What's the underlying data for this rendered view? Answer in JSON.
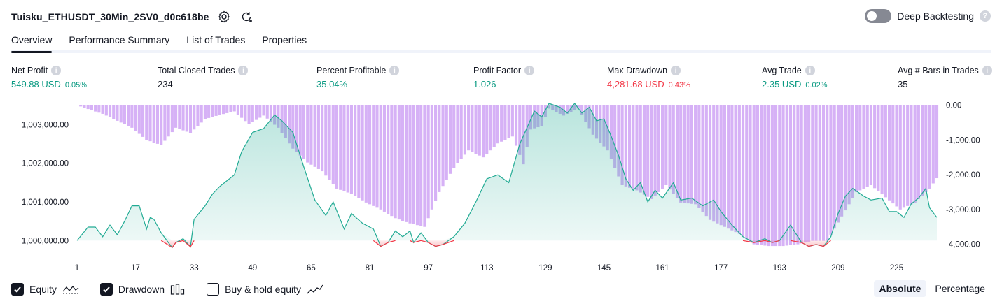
{
  "header": {
    "strategy_name": "Tuisku_ETHUSDT_30Min_2SV0_d0c618be",
    "settings_icon": "gear-icon",
    "refresh_icon": "refresh-icon"
  },
  "deep_backtesting": {
    "label": "Deep Backtesting",
    "enabled": false,
    "help": "?"
  },
  "tabs": [
    {
      "label": "Overview",
      "active": true
    },
    {
      "label": "Performance Summary",
      "active": false
    },
    {
      "label": "List of Trades",
      "active": false
    },
    {
      "label": "Properties",
      "active": false
    }
  ],
  "metrics": {
    "net_profit": {
      "label": "Net Profit",
      "value": "549.88 USD",
      "sub": "0.05%"
    },
    "total_closed_trades": {
      "label": "Total Closed Trades",
      "value": "234"
    },
    "percent_profitable": {
      "label": "Percent Profitable",
      "value": "35.04%"
    },
    "profit_factor": {
      "label": "Profit Factor",
      "value": "1.026"
    },
    "max_drawdown": {
      "label": "Max Drawdown",
      "value": "4,281.68 USD",
      "sub": "0.43%"
    },
    "avg_trade": {
      "label": "Avg Trade",
      "value": "2.35 USD",
      "sub": "0.02%"
    },
    "avg_bars": {
      "label": "Avg # Bars in Trades",
      "value": "35"
    }
  },
  "chart_data": {
    "type": "line",
    "x_tick_labels": [
      "1",
      "17",
      "33",
      "49",
      "65",
      "81",
      "97",
      "113",
      "129",
      "145",
      "161",
      "177",
      "193",
      "209",
      "225"
    ],
    "x_ticks": [
      1,
      17,
      33,
      49,
      65,
      81,
      97,
      113,
      129,
      145,
      161,
      177,
      193,
      209,
      225
    ],
    "xlim": [
      1,
      236
    ],
    "left_axis": {
      "ticks": [
        1000000,
        1001000,
        1002000,
        1003000
      ],
      "labels": [
        "1,000,000.00",
        "1,001,000.00",
        "1,002,000.00",
        "1,003,000.00"
      ],
      "ylim": [
        999500,
        1003550
      ]
    },
    "right_axis": {
      "ticks": [
        0,
        -1000,
        -2000,
        -3000,
        -4000
      ],
      "labels": [
        "0.00",
        "-1,000.00",
        "-2,000.00",
        "-3,000.00",
        "-4,000.00"
      ],
      "ylim": [
        -4450,
        50
      ]
    },
    "series": [
      {
        "name": "Equity",
        "color": "#22ab94",
        "anchors_x": [
          1,
          4,
          6,
          8,
          10,
          12,
          14,
          16,
          18,
          20,
          21,
          22,
          24,
          27,
          28,
          30,
          32,
          33,
          36,
          38,
          40,
          42,
          44,
          46,
          49,
          52,
          55,
          57,
          60,
          63,
          66,
          69,
          71,
          74,
          76,
          79,
          82,
          84,
          86,
          88,
          90,
          92,
          93,
          95,
          97,
          99,
          101,
          104,
          107,
          110,
          113,
          116,
          119,
          122,
          126,
          128,
          130,
          133,
          135,
          137,
          139,
          141,
          143,
          145,
          147,
          149,
          151,
          153,
          155,
          157,
          159,
          161,
          164,
          166,
          169,
          172,
          175,
          177,
          180,
          183,
          186,
          189,
          191,
          193,
          196,
          199,
          201,
          203,
          205,
          207,
          209,
          211,
          213,
          216,
          218,
          221,
          223,
          225,
          227,
          229,
          231,
          233,
          234,
          236
        ],
        "anchors_y": [
          1000000,
          1000350,
          1000350,
          1000100,
          1000400,
          1000150,
          1000500,
          1000900,
          1000900,
          1000300,
          1000600,
          1000550,
          1000200,
          999820,
          999950,
          1000050,
          999840,
          1000550,
          1000900,
          1001200,
          1001400,
          1001550,
          1001700,
          1002300,
          1002800,
          1002900,
          1003250,
          1003100,
          1002800,
          1001900,
          1001050,
          1000650,
          1001000,
          1000300,
          1000700,
          1000450,
          1000300,
          999850,
          999950,
          1000250,
          1000100,
          1000250,
          999950,
          1000200,
          999950,
          999850,
          999900,
          1000100,
          1000450,
          1001000,
          1001600,
          1001700,
          1001500,
          1002500,
          1003350,
          1003200,
          1003550,
          1003450,
          1003300,
          1003550,
          1003300,
          1003450,
          1003100,
          1003150,
          1002700,
          1002200,
          1001600,
          1001300,
          1001500,
          1001000,
          1001300,
          1001100,
          1001500,
          1001050,
          1001100,
          1000900,
          1001050,
          1000750,
          1000400,
          1000100,
          999950,
          1000050,
          999950,
          1000000,
          1000400,
          999950,
          999850,
          999900,
          999850,
          1000100,
          1000700,
          1001150,
          1001350,
          1001150,
          1001050,
          1001100,
          1000750,
          1000750,
          1000600,
          1000950,
          1001100,
          1001350,
          1000850,
          1000600
        ]
      },
      {
        "name": "Drawdown",
        "color": "#cfa3f5",
        "anchors_x": [
          1,
          5,
          8,
          12,
          16,
          20,
          24,
          28,
          32,
          36,
          40,
          44,
          48,
          52,
          56,
          60,
          64,
          68,
          72,
          76,
          80,
          84,
          88,
          92,
          96,
          100,
          104,
          108,
          112,
          116,
          120,
          123,
          125,
          128,
          130,
          134,
          138,
          142,
          146,
          150,
          154,
          158,
          162,
          166,
          170,
          174,
          178,
          182,
          186,
          190,
          194,
          198,
          202,
          206,
          210,
          214,
          218,
          222,
          226,
          230,
          234,
          236
        ],
        "anchors_y": [
          0,
          -150,
          -250,
          -450,
          -650,
          -1000,
          -1150,
          -650,
          -800,
          -400,
          -280,
          -180,
          -550,
          -300,
          -650,
          -1250,
          -1650,
          -1900,
          -2400,
          -2550,
          -2800,
          -3000,
          -3250,
          -3400,
          -3500,
          -2500,
          -1800,
          -1300,
          -1500,
          -1100,
          -900,
          -1700,
          -700,
          -600,
          -100,
          -300,
          -100,
          -850,
          -1300,
          -2300,
          -2450,
          -2700,
          -2300,
          -2800,
          -2850,
          -3300,
          -3500,
          -3700,
          -4000,
          -4050,
          -4050,
          -4000,
          -3900,
          -3900,
          -3200,
          -2500,
          -2300,
          -2650,
          -3000,
          -2800,
          -2400,
          -2100
        ]
      }
    ]
  },
  "legend": {
    "equity": {
      "label": "Equity",
      "checked": true,
      "icon": "line-chart-icon"
    },
    "drawdown": {
      "label": "Drawdown",
      "checked": true,
      "icon": "bar-chart-icon"
    },
    "buy_hold": {
      "label": "Buy & hold equity",
      "checked": false,
      "icon": "trend-line-icon"
    }
  },
  "mode": {
    "absolute": "Absolute",
    "percentage": "Percentage",
    "active": "absolute"
  },
  "colors": {
    "green": "#089981",
    "red": "#f23645",
    "equity_line": "#22ab94",
    "drawdown_fill": "#cfa3f5",
    "text": "#131722"
  }
}
